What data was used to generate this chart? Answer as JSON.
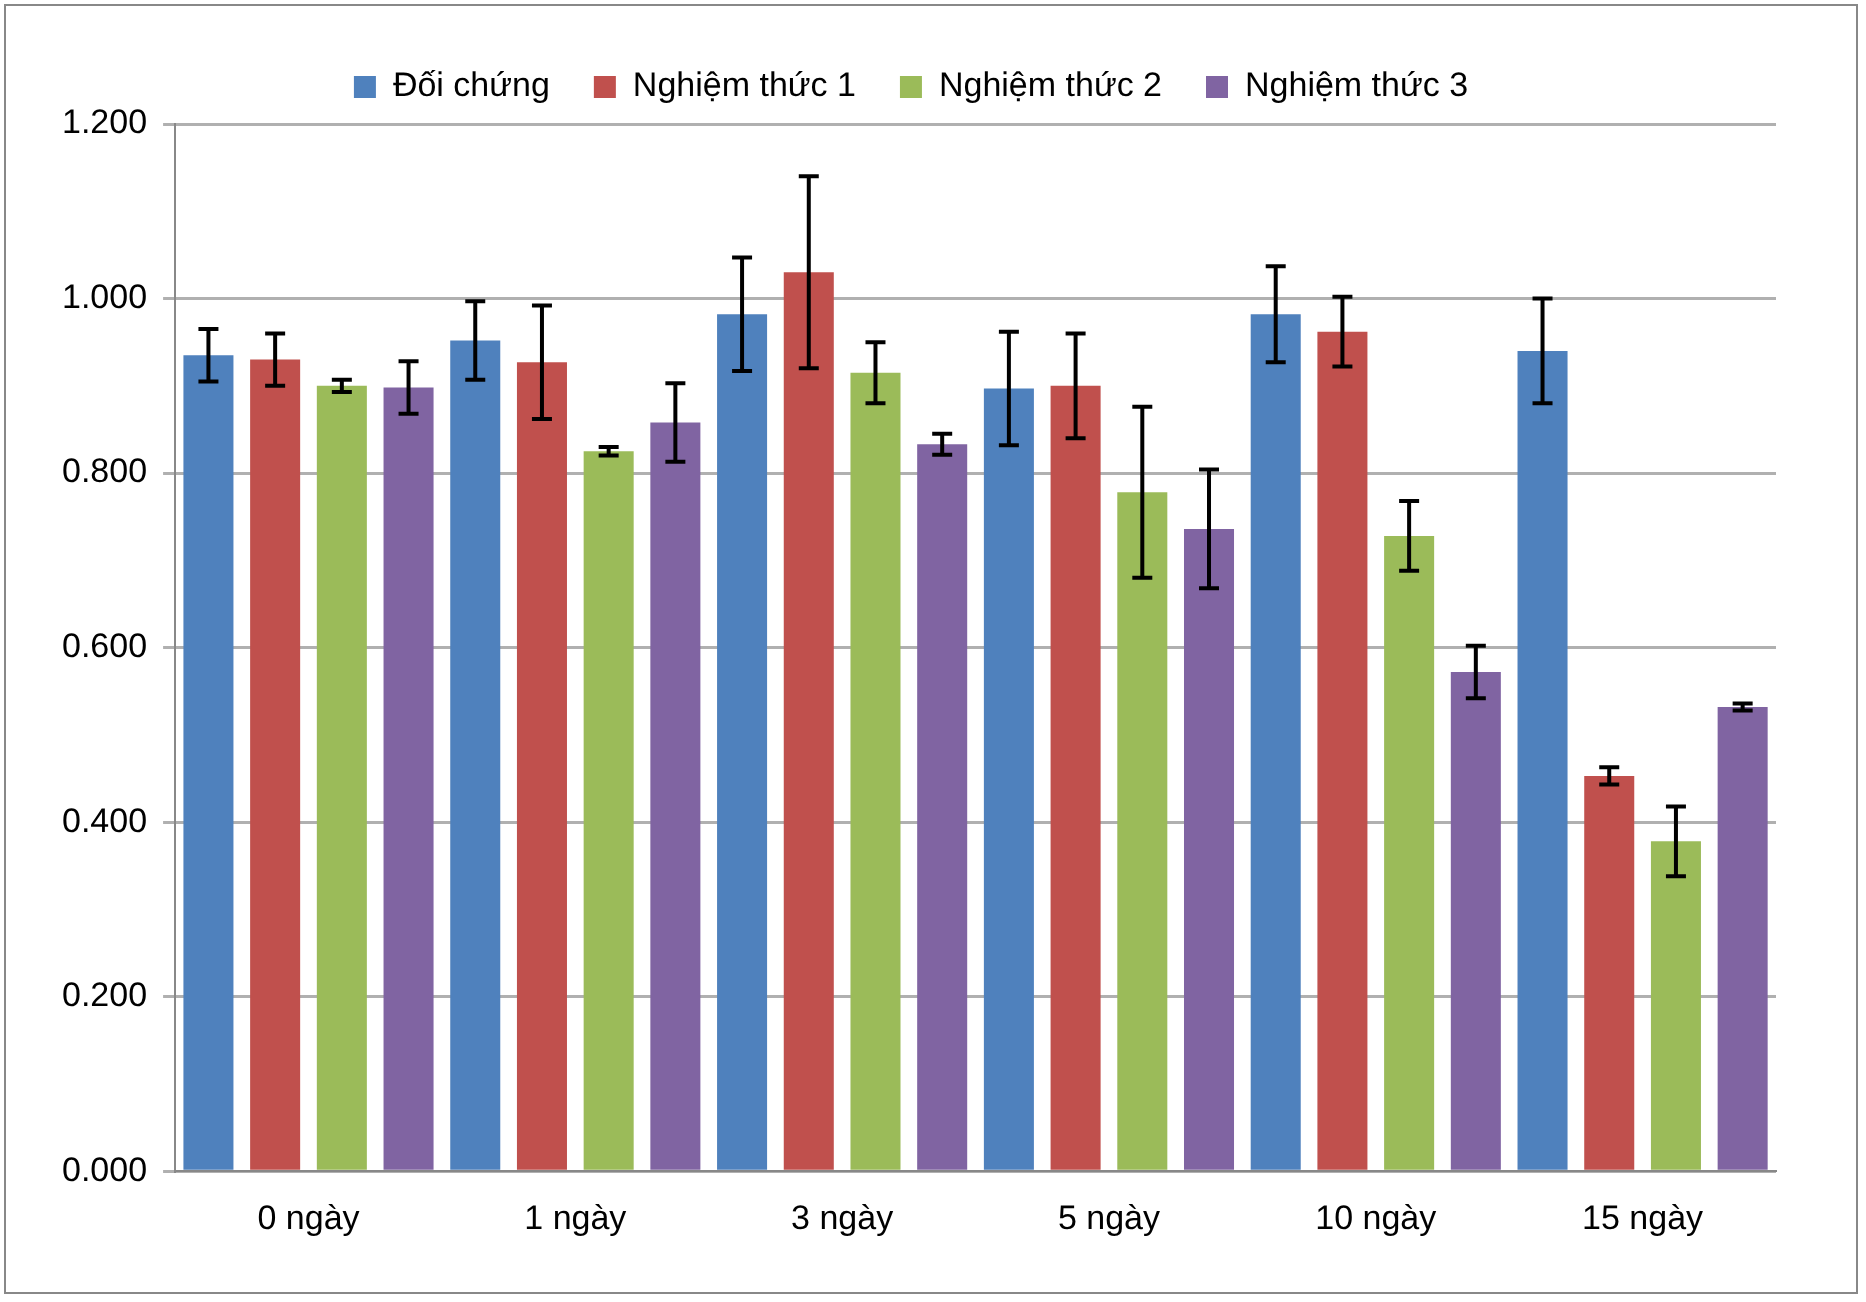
{
  "chart_data": {
    "type": "bar",
    "categories": [
      "0 ngày",
      "1 ngày",
      "3 ngày",
      "5 ngày",
      "10 ngày",
      "15 ngày"
    ],
    "series": [
      {
        "name": "Đối chứng",
        "color": "#4f81bd",
        "values": [
          0.935,
          0.952,
          0.982,
          0.897,
          0.982,
          0.94
        ],
        "errors": [
          0.03,
          0.045,
          0.065,
          0.065,
          0.055,
          0.06
        ]
      },
      {
        "name": "Nghiệm thức 1",
        "color": "#c0504d",
        "values": [
          0.93,
          0.927,
          1.03,
          0.9,
          0.962,
          0.453
        ],
        "errors": [
          0.03,
          0.065,
          0.11,
          0.06,
          0.04,
          0.01
        ]
      },
      {
        "name": "Nghiệm thức 2",
        "color": "#9bbb59",
        "values": [
          0.9,
          0.825,
          0.915,
          0.778,
          0.728,
          0.378
        ],
        "errors": [
          0.007,
          0.005,
          0.035,
          0.098,
          0.04,
          0.04
        ]
      },
      {
        "name": "Nghiệm thức 3",
        "color": "#8064a2",
        "values": [
          0.898,
          0.858,
          0.833,
          0.736,
          0.572,
          0.532
        ],
        "errors": [
          0.03,
          0.045,
          0.012,
          0.068,
          0.03,
          0.004
        ]
      }
    ],
    "ylim": [
      0,
      1.2
    ],
    "yticks": [
      {
        "value": 0,
        "label": "0.000"
      },
      {
        "value": 0.2,
        "label": "0.200"
      },
      {
        "value": 0.4,
        "label": "0.400"
      },
      {
        "value": 0.6,
        "label": "0.600"
      },
      {
        "value": 0.8,
        "label": "0.800"
      },
      {
        "value": 1,
        "label": "1.000"
      },
      {
        "value": 1.2,
        "label": "1.200"
      }
    ],
    "grid": "y",
    "legend": "top"
  }
}
